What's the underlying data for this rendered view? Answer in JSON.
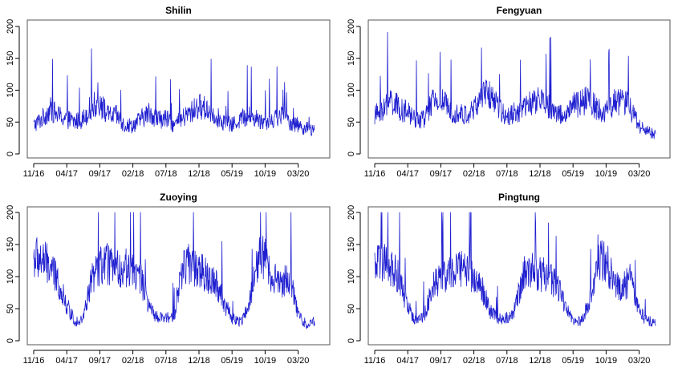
{
  "figure": {
    "line_color": "#1f1fd0",
    "axis_color": "#000000"
  },
  "chart_data": [
    {
      "type": "line",
      "title": "Shilin",
      "x_tick_labels": [
        "11/16",
        "04/17",
        "09/17",
        "02/18",
        "07/18",
        "12/18",
        "05/19",
        "10/19",
        "03/20"
      ],
      "y_ticks": [
        0,
        50,
        100,
        150,
        200
      ],
      "ylim": [
        0,
        200
      ],
      "xlabel": "",
      "ylabel": "",
      "series": [
        {
          "points": [
            [
              0,
              45
            ],
            [
              0.25,
              55
            ],
            [
              0.5,
              70
            ],
            [
              0.75,
              60
            ],
            [
              1,
              55
            ],
            [
              1.25,
              50
            ],
            [
              1.5,
              55
            ],
            [
              1.75,
              75
            ],
            [
              2,
              80
            ],
            [
              2.25,
              60
            ],
            [
              2.5,
              60
            ],
            [
              2.75,
              45
            ],
            [
              3,
              45
            ],
            [
              3.25,
              55
            ],
            [
              3.5,
              65
            ],
            [
              3.75,
              55
            ],
            [
              4,
              55
            ],
            [
              4.25,
              45
            ],
            [
              4.5,
              55
            ],
            [
              4.75,
              65
            ],
            [
              5,
              75
            ],
            [
              5.25,
              70
            ],
            [
              5.5,
              60
            ],
            [
              5.75,
              50
            ],
            [
              6,
              45
            ],
            [
              6.25,
              55
            ],
            [
              6.5,
              60
            ],
            [
              6.75,
              55
            ],
            [
              7,
              50
            ],
            [
              7.25,
              55
            ],
            [
              7.5,
              60
            ],
            [
              7.75,
              50
            ],
            [
              8,
              45
            ],
            [
              8.25,
              40
            ],
            [
              8.5,
              35
            ]
          ]
        }
      ]
    },
    {
      "type": "line",
      "title": "Fengyuan",
      "x_tick_labels": [
        "11/16",
        "04/17",
        "09/17",
        "02/18",
        "07/18",
        "12/18",
        "05/19",
        "10/19",
        "03/20"
      ],
      "y_ticks": [
        0,
        50,
        100,
        150,
        200
      ],
      "ylim": [
        0,
        200
      ],
      "xlabel": "",
      "ylabel": "",
      "series": [
        {
          "points": [
            [
              0,
              60
            ],
            [
              0.25,
              70
            ],
            [
              0.5,
              85
            ],
            [
              0.75,
              70
            ],
            [
              1,
              65
            ],
            [
              1.25,
              55
            ],
            [
              1.5,
              55
            ],
            [
              1.75,
              80
            ],
            [
              2,
              85
            ],
            [
              2.25,
              70
            ],
            [
              2.5,
              65
            ],
            [
              2.75,
              60
            ],
            [
              3,
              70
            ],
            [
              3.25,
              90
            ],
            [
              3.5,
              95
            ],
            [
              3.75,
              70
            ],
            [
              4,
              60
            ],
            [
              4.25,
              65
            ],
            [
              4.5,
              70
            ],
            [
              4.75,
              80
            ],
            [
              5,
              85
            ],
            [
              5.25,
              75
            ],
            [
              5.5,
              65
            ],
            [
              5.75,
              60
            ],
            [
              6,
              75
            ],
            [
              6.25,
              80
            ],
            [
              6.5,
              85
            ],
            [
              6.75,
              70
            ],
            [
              7,
              65
            ],
            [
              7.25,
              80
            ],
            [
              7.5,
              85
            ],
            [
              7.75,
              70
            ],
            [
              8,
              45
            ],
            [
              8.25,
              35
            ],
            [
              8.5,
              30
            ]
          ]
        }
      ]
    },
    {
      "type": "line",
      "title": "Zuoying",
      "x_tick_labels": [
        "11/16",
        "04/17",
        "09/17",
        "02/18",
        "07/18",
        "12/18",
        "05/19",
        "10/19",
        "03/20"
      ],
      "y_ticks": [
        0,
        50,
        100,
        150,
        200
      ],
      "ylim": [
        0,
        200
      ],
      "xlabel": "",
      "ylabel": "",
      "series": [
        {
          "points": [
            [
              0,
              130
            ],
            [
              0.25,
              125
            ],
            [
              0.5,
              115
            ],
            [
              0.75,
              90
            ],
            [
              1,
              55
            ],
            [
              1.25,
              30
            ],
            [
              1.5,
              35
            ],
            [
              1.75,
              95
            ],
            [
              2,
              115
            ],
            [
              2.25,
              120
            ],
            [
              2.5,
              110
            ],
            [
              2.75,
              115
            ],
            [
              3,
              110
            ],
            [
              3.25,
              95
            ],
            [
              3.5,
              50
            ],
            [
              3.75,
              35
            ],
            [
              4,
              35
            ],
            [
              4.25,
              40
            ],
            [
              4.5,
              115
            ],
            [
              4.75,
              120
            ],
            [
              5,
              110
            ],
            [
              5.25,
              100
            ],
            [
              5.5,
              95
            ],
            [
              5.75,
              60
            ],
            [
              6,
              35
            ],
            [
              6.25,
              30
            ],
            [
              6.5,
              50
            ],
            [
              6.75,
              125
            ],
            [
              7,
              130
            ],
            [
              7.25,
              95
            ],
            [
              7.5,
              90
            ],
            [
              7.75,
              100
            ],
            [
              8,
              40
            ],
            [
              8.25,
              25
            ],
            [
              8.5,
              30
            ]
          ]
        }
      ]
    },
    {
      "type": "line",
      "title": "Pingtung",
      "x_tick_labels": [
        "11/16",
        "04/17",
        "09/17",
        "02/18",
        "07/18",
        "12/18",
        "05/19",
        "10/19",
        "03/20"
      ],
      "y_ticks": [
        0,
        50,
        100,
        150,
        200
      ],
      "ylim": [
        0,
        200
      ],
      "xlabel": "",
      "ylabel": "",
      "series": [
        {
          "points": [
            [
              0,
              115
            ],
            [
              0.25,
              120
            ],
            [
              0.5,
              115
            ],
            [
              0.75,
              95
            ],
            [
              1,
              55
            ],
            [
              1.25,
              30
            ],
            [
              1.5,
              40
            ],
            [
              1.75,
              85
            ],
            [
              2,
              100
            ],
            [
              2.25,
              105
            ],
            [
              2.5,
              110
            ],
            [
              2.75,
              115
            ],
            [
              3,
              100
            ],
            [
              3.25,
              80
            ],
            [
              3.5,
              45
            ],
            [
              3.75,
              35
            ],
            [
              4,
              35
            ],
            [
              4.25,
              50
            ],
            [
              4.5,
              105
            ],
            [
              4.75,
              110
            ],
            [
              5,
              105
            ],
            [
              5.25,
              100
            ],
            [
              5.5,
              90
            ],
            [
              5.75,
              55
            ],
            [
              6,
              30
            ],
            [
              6.25,
              30
            ],
            [
              6.5,
              60
            ],
            [
              6.75,
              130
            ],
            [
              7,
              125
            ],
            [
              7.25,
              90
            ],
            [
              7.5,
              85
            ],
            [
              7.75,
              95
            ],
            [
              8,
              45
            ],
            [
              8.25,
              30
            ],
            [
              8.5,
              30
            ]
          ]
        }
      ]
    }
  ]
}
